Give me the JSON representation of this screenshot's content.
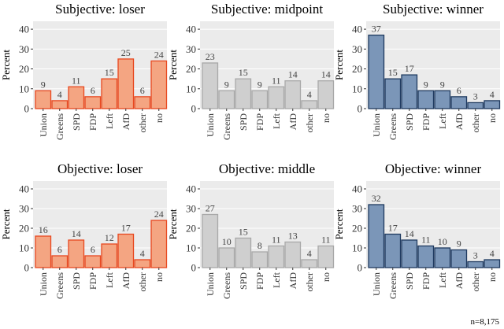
{
  "chart_data": [
    {
      "type": "bar",
      "title": "Subjective: loser",
      "ylabel": "Percent",
      "ylim": [
        0,
        44
      ],
      "yticks": [
        0,
        10,
        20,
        30,
        40
      ],
      "grid": true,
      "categories": [
        "Union",
        "Greens",
        "SPD",
        "FDP",
        "Left",
        "AfD",
        "other",
        "no"
      ],
      "values": [
        9,
        4,
        11,
        6,
        15,
        25,
        6,
        24
      ],
      "color": "loser"
    },
    {
      "type": "bar",
      "title": "Subjective: midpoint",
      "ylabel": "Percent",
      "ylim": [
        0,
        44
      ],
      "yticks": [
        0,
        10,
        20,
        30,
        40
      ],
      "grid": true,
      "categories": [
        "Union",
        "Greens",
        "SPD",
        "FDP",
        "Left",
        "AfD",
        "other",
        "no"
      ],
      "values": [
        23,
        9,
        15,
        9,
        11,
        14,
        4,
        14
      ],
      "color": "middle"
    },
    {
      "type": "bar",
      "title": "Subjective: winner",
      "ylabel": "Percent",
      "ylim": [
        0,
        44
      ],
      "yticks": [
        0,
        10,
        20,
        30,
        40
      ],
      "grid": true,
      "categories": [
        "Union",
        "Greens",
        "SPD",
        "FDP",
        "Left",
        "AfD",
        "other",
        "no"
      ],
      "values": [
        37,
        15,
        17,
        9,
        9,
        6,
        3,
        4
      ],
      "color": "winner"
    },
    {
      "type": "bar",
      "title": "Objective: loser",
      "ylabel": "Percent",
      "ylim": [
        0,
        44
      ],
      "yticks": [
        0,
        10,
        20,
        30,
        40
      ],
      "grid": true,
      "categories": [
        "Union",
        "Greens",
        "SPD",
        "FDP",
        "Left",
        "AfD",
        "other",
        "no"
      ],
      "values": [
        16,
        6,
        14,
        6,
        12,
        17,
        4,
        24
      ],
      "color": "loser"
    },
    {
      "type": "bar",
      "title": "Objective: middle",
      "ylabel": "Percent",
      "ylim": [
        0,
        44
      ],
      "yticks": [
        0,
        10,
        20,
        30,
        40
      ],
      "grid": true,
      "categories": [
        "Union",
        "Greens",
        "SPD",
        "FDP",
        "Left",
        "AfD",
        "other",
        "no"
      ],
      "values": [
        27,
        10,
        15,
        8,
        11,
        13,
        4,
        11
      ],
      "color": "middle"
    },
    {
      "type": "bar",
      "title": "Objective: winner",
      "ylabel": "Percent",
      "ylim": [
        0,
        44
      ],
      "yticks": [
        0,
        10,
        20,
        30,
        40
      ],
      "grid": true,
      "categories": [
        "Union",
        "Greens",
        "SPD",
        "FDP",
        "Left",
        "AfD",
        "other",
        "no"
      ],
      "values": [
        32,
        17,
        14,
        11,
        10,
        9,
        3,
        4
      ],
      "color": "winner"
    }
  ],
  "colors": {
    "loser_fill": "#f4a582",
    "loser_stroke": "#e8481f",
    "middle_fill": "#cfcfcf",
    "middle_stroke": "#a8a8a8",
    "winner_fill": "#7b96b8",
    "winner_stroke": "#1f3a60",
    "panel_bg": "#ebebeb",
    "grid": "#ffffff"
  },
  "note": "n=8,175"
}
